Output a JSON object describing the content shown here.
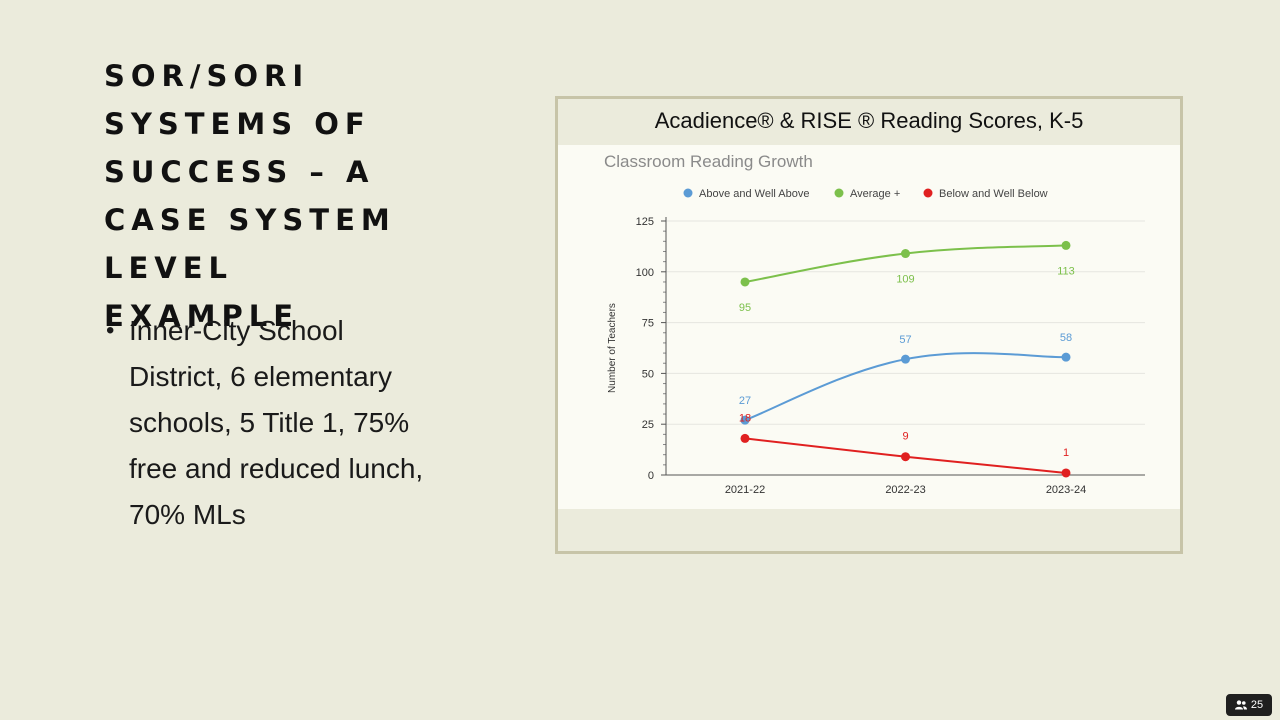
{
  "slide": {
    "title": "SOR/SORI SYSTEMS OF SUCCESS – A CASE SYSTEM LEVEL EXAMPLE",
    "bullets": [
      "Inner-City School District, 6 elementary schools, 5 Title 1, 75% free and reduced lunch, 70% MLs"
    ]
  },
  "chart_banner": "Acadience® & RISE ® Reading Scores, K-5",
  "participants": {
    "icon": "people-icon",
    "count": "25"
  },
  "chart_data": {
    "type": "line",
    "title": "Classroom Reading Growth",
    "xlabel": "",
    "ylabel": "Number of Teachers",
    "categories": [
      "2021-22",
      "2022-23",
      "2023-24"
    ],
    "ylim": [
      0,
      125
    ],
    "yticks": [
      0,
      25,
      50,
      75,
      100,
      125
    ],
    "grid": true,
    "legend_position": "top",
    "series": [
      {
        "name": "Above and Well Above",
        "color": "#5b9bd5",
        "values": [
          27,
          57,
          58
        ]
      },
      {
        "name": "Average +",
        "color": "#7cc04b",
        "values": [
          95,
          109,
          113
        ]
      },
      {
        "name": "Below and Well Below",
        "color": "#e02020",
        "values": [
          18,
          9,
          1
        ]
      }
    ]
  }
}
